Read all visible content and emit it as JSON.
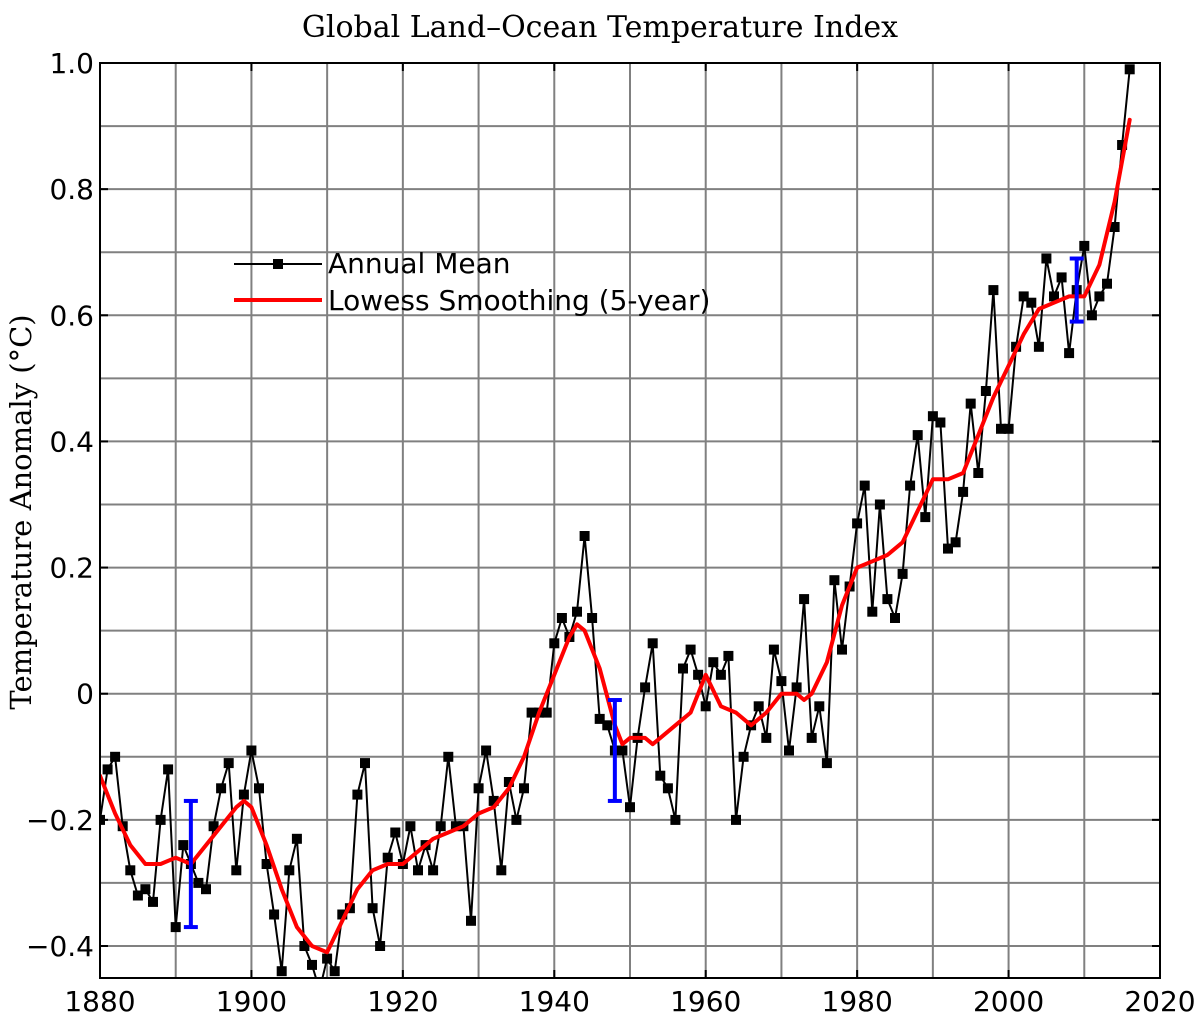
{
  "chart_data": {
    "type": "line",
    "title": "Global Land–Ocean Temperature Index",
    "xlabel": "",
    "ylabel": "Temperature Anomaly (°C)",
    "xlim": [
      1880,
      2020
    ],
    "ylim": [
      -0.45,
      1.0
    ],
    "grid": true,
    "legend_position": "upper-left",
    "x_ticks": [
      1880,
      1900,
      1920,
      1940,
      1960,
      1980,
      2000,
      2020
    ],
    "x_tick_labels": [
      "1880",
      "1900",
      "1920",
      "1940",
      "1960",
      "1980",
      "2000",
      "2020"
    ],
    "y_ticks": [
      -0.4,
      -0.2,
      0,
      0.2,
      0.4,
      0.6,
      0.8,
      1.0
    ],
    "y_tick_labels": [
      "−0.4",
      "−0.2",
      "0",
      "0.2",
      "0.4",
      "0.6",
      "0.8",
      "1.0"
    ],
    "series": [
      {
        "name": "Annual Mean",
        "color": "#000000",
        "marker": "square",
        "x": [
          1880,
          1881,
          1882,
          1883,
          1884,
          1885,
          1886,
          1887,
          1888,
          1889,
          1890,
          1891,
          1892,
          1893,
          1894,
          1895,
          1896,
          1897,
          1898,
          1899,
          1900,
          1901,
          1902,
          1903,
          1904,
          1905,
          1906,
          1907,
          1908,
          1909,
          1910,
          1911,
          1912,
          1913,
          1914,
          1915,
          1916,
          1917,
          1918,
          1919,
          1920,
          1921,
          1922,
          1923,
          1924,
          1925,
          1926,
          1927,
          1928,
          1929,
          1930,
          1931,
          1932,
          1933,
          1934,
          1935,
          1936,
          1937,
          1938,
          1939,
          1940,
          1941,
          1942,
          1943,
          1944,
          1945,
          1946,
          1947,
          1948,
          1949,
          1950,
          1951,
          1952,
          1953,
          1954,
          1955,
          1956,
          1957,
          1958,
          1959,
          1960,
          1961,
          1962,
          1963,
          1964,
          1965,
          1966,
          1967,
          1968,
          1969,
          1970,
          1971,
          1972,
          1973,
          1974,
          1975,
          1976,
          1977,
          1978,
          1979,
          1980,
          1981,
          1982,
          1983,
          1984,
          1985,
          1986,
          1987,
          1988,
          1989,
          1990,
          1991,
          1992,
          1993,
          1994,
          1995,
          1996,
          1997,
          1998,
          1999,
          2000,
          2001,
          2002,
          2003,
          2004,
          2005,
          2006,
          2007,
          2008,
          2009,
          2010,
          2011,
          2012,
          2013,
          2014,
          2015,
          2016
        ],
        "y": [
          -0.2,
          -0.12,
          -0.1,
          -0.21,
          -0.28,
          -0.32,
          -0.31,
          -0.33,
          -0.2,
          -0.12,
          -0.37,
          -0.24,
          -0.27,
          -0.3,
          -0.31,
          -0.21,
          -0.15,
          -0.11,
          -0.28,
          -0.16,
          -0.09,
          -0.15,
          -0.27,
          -0.35,
          -0.44,
          -0.28,
          -0.23,
          -0.4,
          -0.43,
          -0.47,
          -0.42,
          -0.44,
          -0.35,
          -0.34,
          -0.16,
          -0.11,
          -0.34,
          -0.4,
          -0.26,
          -0.22,
          -0.27,
          -0.21,
          -0.28,
          -0.24,
          -0.28,
          -0.21,
          -0.1,
          -0.21,
          -0.21,
          -0.36,
          -0.15,
          -0.09,
          -0.17,
          -0.28,
          -0.14,
          -0.2,
          -0.15,
          -0.03,
          -0.03,
          -0.03,
          0.08,
          0.12,
          0.09,
          0.13,
          0.25,
          0.12,
          -0.04,
          -0.05,
          -0.09,
          -0.09,
          -0.18,
          -0.07,
          0.01,
          0.08,
          -0.13,
          -0.15,
          -0.2,
          0.04,
          0.07,
          0.03,
          -0.02,
          0.05,
          0.03,
          0.06,
          -0.2,
          -0.1,
          -0.05,
          -0.02,
          -0.07,
          0.07,
          0.02,
          -0.09,
          0.01,
          0.15,
          -0.07,
          -0.02,
          -0.11,
          0.18,
          0.07,
          0.17,
          0.27,
          0.33,
          0.13,
          0.3,
          0.15,
          0.12,
          0.19,
          0.33,
          0.41,
          0.28,
          0.44,
          0.43,
          0.23,
          0.24,
          0.32,
          0.46,
          0.35,
          0.48,
          0.64,
          0.42,
          0.42,
          0.55,
          0.63,
          0.62,
          0.55,
          0.69,
          0.63,
          0.66,
          0.54,
          0.64,
          0.71,
          0.6,
          0.63,
          0.65,
          0.74,
          0.87,
          0.99
        ]
      },
      {
        "name": "Lowess Smoothing (5-year)",
        "color": "#ff0000",
        "marker": "none",
        "x": [
          1880,
          1882,
          1884,
          1886,
          1888,
          1890,
          1892,
          1894,
          1896,
          1898,
          1899,
          1900,
          1902,
          1904,
          1906,
          1908,
          1910,
          1912,
          1914,
          1916,
          1918,
          1920,
          1922,
          1924,
          1926,
          1928,
          1930,
          1932,
          1934,
          1936,
          1938,
          1940,
          1942,
          1943,
          1944,
          1946,
          1948,
          1949,
          1950,
          1952,
          1953,
          1954,
          1956,
          1958,
          1960,
          1962,
          1964,
          1966,
          1968,
          1970,
          1972,
          1973,
          1974,
          1976,
          1978,
          1980,
          1982,
          1984,
          1986,
          1988,
          1990,
          1992,
          1994,
          1996,
          1998,
          2000,
          2002,
          2004,
          2006,
          2008,
          2010,
          2012,
          2014,
          2016
        ],
        "y": [
          -0.13,
          -0.19,
          -0.24,
          -0.27,
          -0.27,
          -0.26,
          -0.27,
          -0.24,
          -0.21,
          -0.18,
          -0.17,
          -0.18,
          -0.24,
          -0.31,
          -0.37,
          -0.4,
          -0.41,
          -0.36,
          -0.31,
          -0.28,
          -0.27,
          -0.27,
          -0.25,
          -0.23,
          -0.22,
          -0.21,
          -0.19,
          -0.18,
          -0.15,
          -0.1,
          -0.03,
          0.03,
          0.09,
          0.11,
          0.1,
          0.04,
          -0.05,
          -0.08,
          -0.07,
          -0.07,
          -0.08,
          -0.07,
          -0.05,
          -0.03,
          0.03,
          -0.02,
          -0.03,
          -0.05,
          -0.03,
          0.0,
          0.0,
          -0.01,
          0.0,
          0.05,
          0.14,
          0.2,
          0.21,
          0.22,
          0.24,
          0.29,
          0.34,
          0.34,
          0.35,
          0.41,
          0.47,
          0.52,
          0.57,
          0.61,
          0.62,
          0.63,
          0.63,
          0.68,
          0.78,
          0.91
        ]
      }
    ],
    "error_bars": [
      {
        "x": 1892,
        "low": -0.37,
        "high": -0.17,
        "color": "#0000ff"
      },
      {
        "x": 1948,
        "low": -0.17,
        "high": -0.01,
        "color": "#0000ff"
      },
      {
        "x": 2009,
        "low": 0.59,
        "high": 0.69,
        "color": "#0000ff"
      }
    ]
  }
}
